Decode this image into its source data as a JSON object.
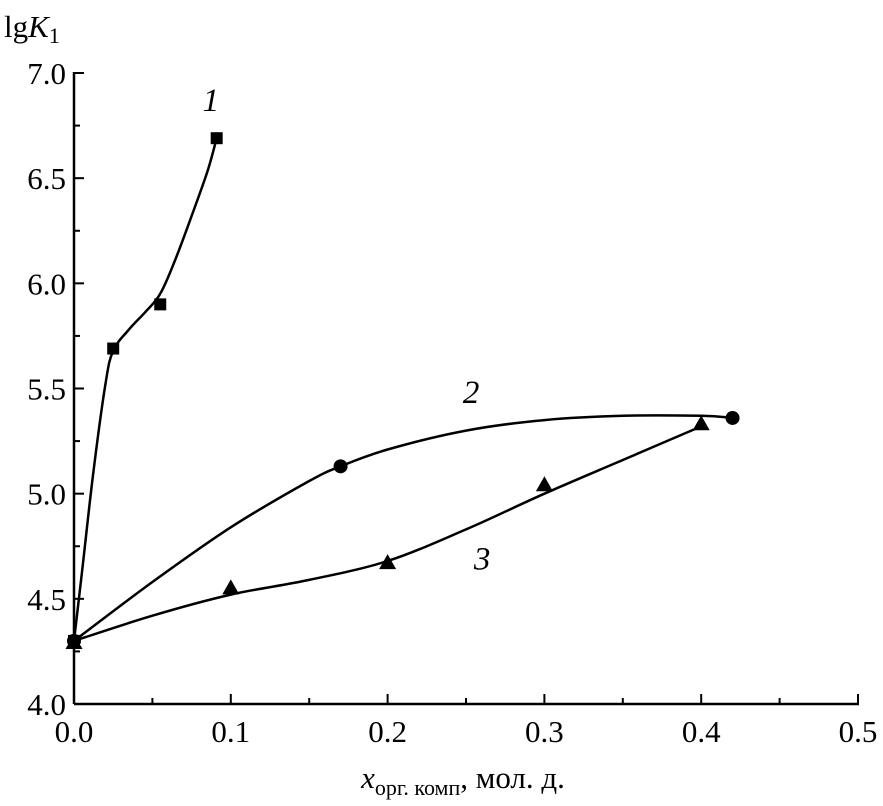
{
  "chart_data": {
    "type": "scatter",
    "ylabel_prefix": "lg",
    "ylabel_var": "K",
    "ylabel_sub": "1",
    "xlabel_var": "x",
    "xlabel_sub": "орг. комп",
    "xlabel_suffix": ", мол. д.",
    "xlim": [
      0.0,
      0.5
    ],
    "ylim": [
      4.0,
      7.0
    ],
    "x_ticks": [
      "0.0",
      "0.1",
      "0.2",
      "0.3",
      "0.4",
      "0.5"
    ],
    "y_ticks": [
      "4.0",
      "4.5",
      "5.0",
      "5.5",
      "6.0",
      "6.5",
      "7.0"
    ],
    "grid": false,
    "series": [
      {
        "name": "1",
        "marker": "square",
        "points": [
          [
            0.0,
            4.3
          ],
          [
            0.025,
            5.69
          ],
          [
            0.055,
            5.9
          ],
          [
            0.091,
            6.69
          ]
        ],
        "curve": [
          [
            0.0,
            4.3
          ],
          [
            0.005,
            4.62
          ],
          [
            0.012,
            5.08
          ],
          [
            0.02,
            5.52
          ],
          [
            0.025,
            5.68
          ],
          [
            0.035,
            5.78
          ],
          [
            0.045,
            5.86
          ],
          [
            0.055,
            5.95
          ],
          [
            0.065,
            6.12
          ],
          [
            0.075,
            6.32
          ],
          [
            0.085,
            6.53
          ],
          [
            0.091,
            6.69
          ]
        ]
      },
      {
        "name": "2",
        "marker": "circle",
        "points": [
          [
            0.0,
            4.3
          ],
          [
            0.17,
            5.13
          ],
          [
            0.42,
            5.36
          ]
        ],
        "curve": [
          [
            0.0,
            4.3
          ],
          [
            0.05,
            4.58
          ],
          [
            0.1,
            4.84
          ],
          [
            0.15,
            5.06
          ],
          [
            0.17,
            5.13
          ],
          [
            0.2,
            5.21
          ],
          [
            0.25,
            5.3
          ],
          [
            0.3,
            5.35
          ],
          [
            0.35,
            5.37
          ],
          [
            0.4,
            5.37
          ],
          [
            0.42,
            5.36
          ]
        ]
      },
      {
        "name": "3",
        "marker": "triangle",
        "points": [
          [
            0.0,
            4.29
          ],
          [
            0.1,
            4.55
          ],
          [
            0.2,
            4.67
          ],
          [
            0.3,
            5.04
          ],
          [
            0.4,
            5.33
          ]
        ],
        "curve": [
          [
            0.0,
            4.3
          ],
          [
            0.05,
            4.42
          ],
          [
            0.1,
            4.52
          ],
          [
            0.15,
            4.59
          ],
          [
            0.2,
            4.68
          ],
          [
            0.25,
            4.83
          ],
          [
            0.3,
            5.0
          ],
          [
            0.35,
            5.16
          ],
          [
            0.4,
            5.32
          ]
        ]
      }
    ],
    "series_labels": [
      {
        "text": "1",
        "x": 0.082,
        "y": 6.82
      },
      {
        "text": "2",
        "x": 0.248,
        "y": 5.43
      },
      {
        "text": "3",
        "x": 0.255,
        "y": 4.64
      }
    ]
  }
}
